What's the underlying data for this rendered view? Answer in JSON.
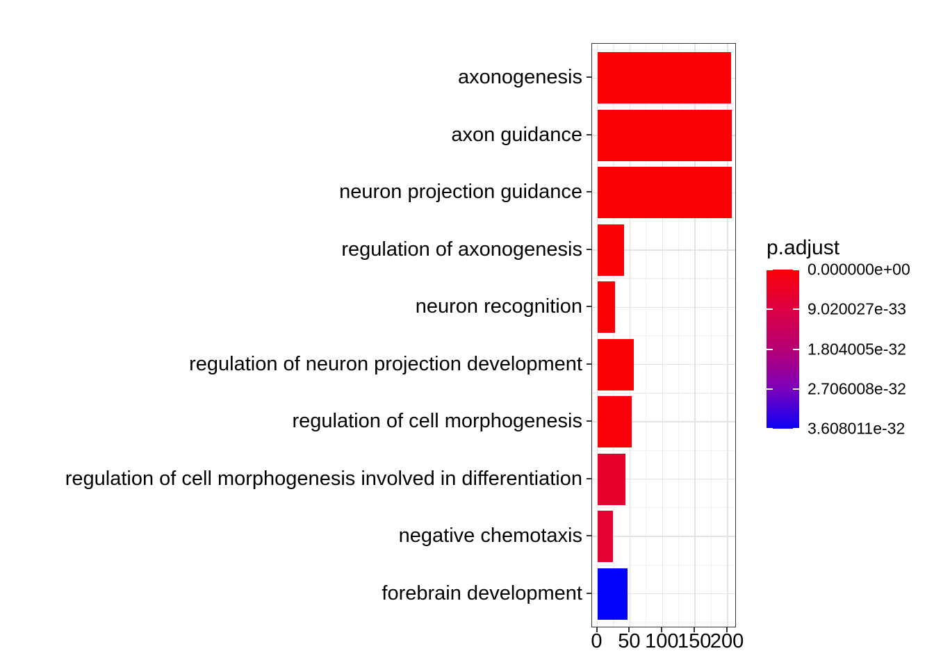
{
  "figure": {
    "background": "#FFFFFF",
    "panel_background": "#FFFFFF"
  },
  "chart_data": {
    "type": "bar",
    "orientation": "horizontal",
    "title": "",
    "xlabel": "",
    "ylabel": "",
    "categories": [
      "axonogenesis",
      "axon guidance",
      "neuron projection guidance",
      "regulation of axonogenesis",
      "neuron recognition",
      "regulation of neuron projection development",
      "regulation of cell morphogenesis",
      "regulation of cell morphogenesis involved in differentiation",
      "negative chemotaxis",
      "forebrain development"
    ],
    "values": [
      205,
      206,
      206,
      41,
      27,
      56,
      53,
      43,
      24,
      46
    ],
    "bar_colors": [
      "#FA0007",
      "#FA0007",
      "#FA0007",
      "#FA0007",
      "#FA0007",
      "#FA0007",
      "#FA0008",
      "#E8002C",
      "#E40134",
      "#0502FA"
    ],
    "x_tick_labels": [
      "0",
      "50",
      "100",
      "150",
      "200"
    ],
    "x_tick_values": [
      0,
      50,
      100,
      150,
      200
    ],
    "x_minor_values": [
      25,
      75,
      125,
      175
    ],
    "xlim": [
      0,
      200
    ],
    "grid": true,
    "bar_fill_mapped_to": "p.adjust",
    "legend": {
      "position": "right",
      "title": "p.adjust",
      "labels": [
        "0.000000e+00",
        "9.020027e-33",
        "1.804005e-32",
        "2.706008e-32",
        "3.608011e-32"
      ],
      "gradient_stops": [
        "#FA0007",
        "#DD0043",
        "#B60074",
        "#7B00BA",
        "#0B00F5"
      ],
      "tick_color": "#FFFFFF"
    },
    "colors": {
      "grid_major": "#E3E3E3",
      "grid_minor": "#F1F1F1",
      "axis_tick": "#333333",
      "panel_border": "#333333",
      "text": "#000000"
    }
  }
}
